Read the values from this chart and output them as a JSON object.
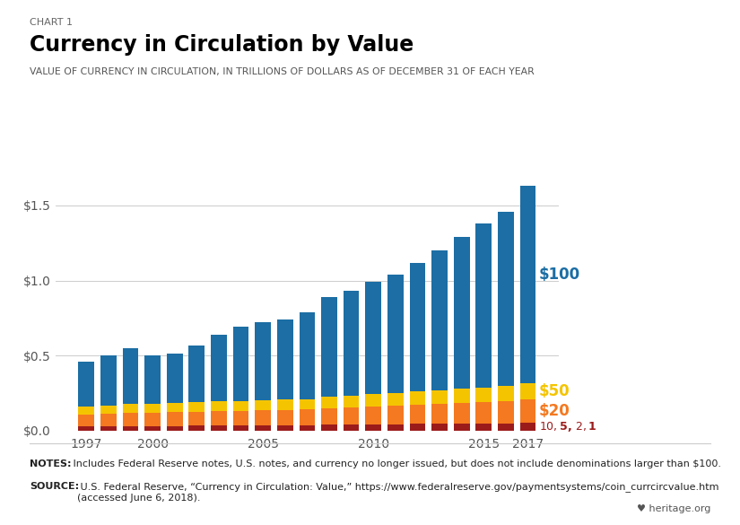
{
  "chart_label": "CHART 1",
  "title": "Currency in Circulation by Value",
  "subtitle": "VALUE OF CURRENCY IN CIRCULATION, IN TRILLIONS OF DOLLARS AS OF DECEMBER 31 OF EACH YEAR",
  "years": [
    1997,
    1998,
    1999,
    2000,
    2001,
    2002,
    2003,
    2004,
    2005,
    2006,
    2007,
    2008,
    2009,
    2010,
    2011,
    2012,
    2013,
    2014,
    2015,
    2016,
    2017
  ],
  "small": [
    0.028,
    0.029,
    0.03,
    0.03,
    0.031,
    0.032,
    0.033,
    0.034,
    0.035,
    0.036,
    0.037,
    0.04,
    0.041,
    0.042,
    0.043,
    0.044,
    0.045,
    0.046,
    0.047,
    0.048,
    0.05
  ],
  "twenty": [
    0.075,
    0.08,
    0.085,
    0.088,
    0.09,
    0.093,
    0.095,
    0.097,
    0.099,
    0.1,
    0.103,
    0.11,
    0.115,
    0.12,
    0.125,
    0.13,
    0.135,
    0.14,
    0.145,
    0.15,
    0.16
  ],
  "fifty": [
    0.055,
    0.058,
    0.06,
    0.062,
    0.064,
    0.065,
    0.066,
    0.067,
    0.068,
    0.069,
    0.07,
    0.075,
    0.077,
    0.08,
    0.082,
    0.085,
    0.088,
    0.091,
    0.094,
    0.1,
    0.108
  ],
  "hundred": [
    0.302,
    0.333,
    0.375,
    0.32,
    0.33,
    0.376,
    0.446,
    0.492,
    0.518,
    0.535,
    0.58,
    0.665,
    0.697,
    0.748,
    0.79,
    0.861,
    0.932,
    1.013,
    1.094,
    1.162,
    1.312
  ],
  "color_small": "#9B1B1B",
  "color_twenty": "#F47920",
  "color_fifty": "#F5C400",
  "color_hundred": "#1C6EA4",
  "color_background": "#FFFFFF",
  "ylim_max": 1.75,
  "yticks": [
    0.0,
    0.5,
    1.0,
    1.5
  ],
  "ytick_labels": [
    "$0.0",
    "$0.5",
    "$1.0",
    "$1.5"
  ],
  "shown_years": [
    1997,
    2000,
    2005,
    2010,
    2015,
    2017
  ],
  "notes_bold": "NOTES:",
  "notes_rest": " Includes Federal Reserve notes, U.S. notes, and currency no longer issued, but does not include denominations larger than $100.",
  "source_bold": "SOURCE:",
  "source_rest": " U.S. Federal Reserve, “Currency in Circulation: Value,” https://www.federalreserve.gov/paymentsystems/coin_currcircvalue.htm\n(accessed June 6, 2018).",
  "legend_100_label": "$100",
  "legend_50_label": "$50",
  "legend_20_label": "$20",
  "legend_small_label": "$10, $5, $2, $1",
  "legend_100_color": "#1C6EA4",
  "legend_50_color": "#F5C400",
  "legend_20_color": "#F47920",
  "legend_small_color": "#9B1B1B",
  "heritage_text": "♥ heritage.org"
}
